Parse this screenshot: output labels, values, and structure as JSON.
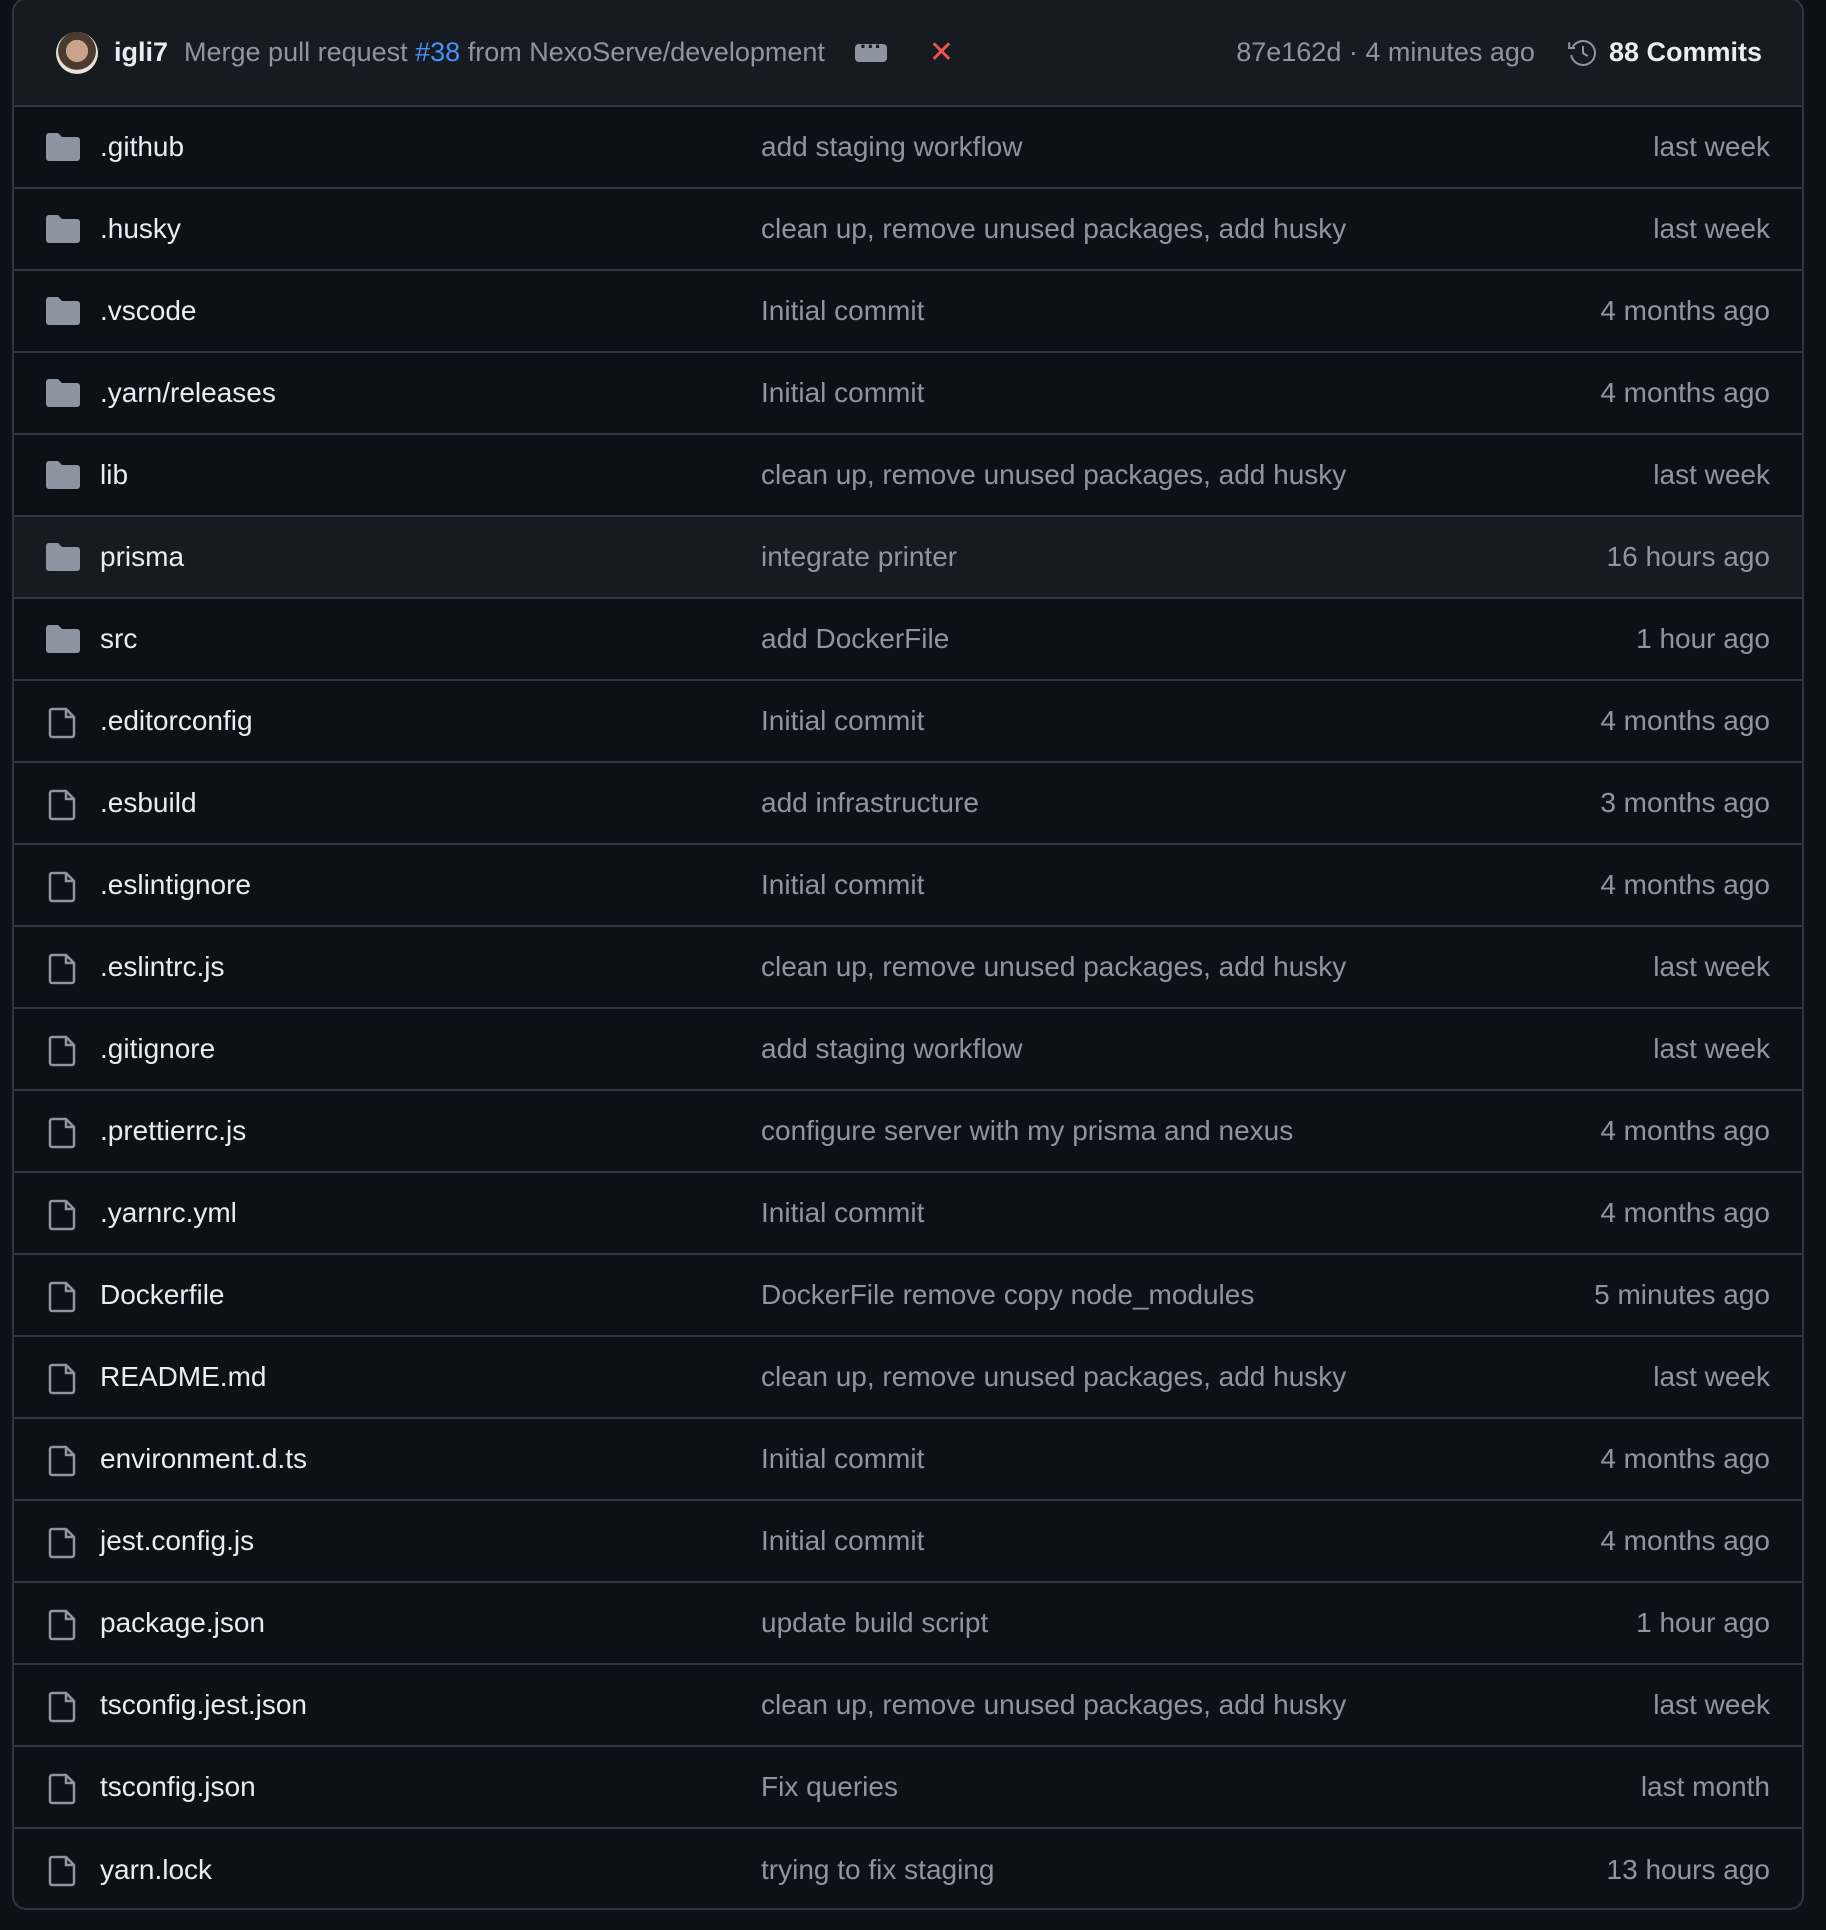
{
  "commit": {
    "author": "igli7",
    "message_prefix": "Merge pull request ",
    "pr": "#38",
    "message_suffix": " from NexoServe/development",
    "sha_time": "87e162d · 4 minutes ago",
    "commits": "88 Commits",
    "colors": {
      "link": "#4493f8",
      "fail": "#f85149"
    }
  },
  "files": [
    {
      "type": "folder",
      "name": ".github",
      "message": "add staging workflow",
      "date": "last week"
    },
    {
      "type": "folder",
      "name": ".husky",
      "message": "clean up, remove unused packages, add husky",
      "date": "last week"
    },
    {
      "type": "folder",
      "name": ".vscode",
      "message": "Initial commit",
      "date": "4 months ago"
    },
    {
      "type": "folder",
      "name": ".yarn/releases",
      "message": "Initial commit",
      "date": "4 months ago"
    },
    {
      "type": "folder",
      "name": "lib",
      "message": "clean up, remove unused packages, add husky",
      "date": "last week"
    },
    {
      "type": "folder",
      "name": "prisma",
      "message": "integrate printer",
      "date": "16 hours ago",
      "highlighted": true
    },
    {
      "type": "folder",
      "name": "src",
      "message": "add DockerFile",
      "date": "1 hour ago"
    },
    {
      "type": "file",
      "name": ".editorconfig",
      "message": "Initial commit",
      "date": "4 months ago"
    },
    {
      "type": "file",
      "name": ".esbuild",
      "message": "add infrastructure",
      "date": "3 months ago"
    },
    {
      "type": "file",
      "name": ".eslintignore",
      "message": "Initial commit",
      "date": "4 months ago"
    },
    {
      "type": "file",
      "name": ".eslintrc.js",
      "message": "clean up, remove unused packages, add husky",
      "date": "last week"
    },
    {
      "type": "file",
      "name": ".gitignore",
      "message": "add staging workflow",
      "date": "last week"
    },
    {
      "type": "file",
      "name": ".prettierrc.js",
      "message": "configure server with my prisma and nexus",
      "date": "4 months ago"
    },
    {
      "type": "file",
      "name": ".yarnrc.yml",
      "message": "Initial commit",
      "date": "4 months ago"
    },
    {
      "type": "file",
      "name": "Dockerfile",
      "message": "DockerFile remove copy node_modules",
      "date": "5 minutes ago"
    },
    {
      "type": "file",
      "name": "README.md",
      "message": "clean up, remove unused packages, add husky",
      "date": "last week"
    },
    {
      "type": "file",
      "name": "environment.d.ts",
      "message": "Initial commit",
      "date": "4 months ago"
    },
    {
      "type": "file",
      "name": "jest.config.js",
      "message": "Initial commit",
      "date": "4 months ago"
    },
    {
      "type": "file",
      "name": "package.json",
      "message": "update build script",
      "date": "1 hour ago"
    },
    {
      "type": "file",
      "name": "tsconfig.jest.json",
      "message": "clean up, remove unused packages, add husky",
      "date": "last week"
    },
    {
      "type": "file",
      "name": "tsconfig.json",
      "message": "Fix queries",
      "date": "last month"
    },
    {
      "type": "file",
      "name": "yarn.lock",
      "message": "trying to fix staging",
      "date": "13 hours ago"
    }
  ]
}
